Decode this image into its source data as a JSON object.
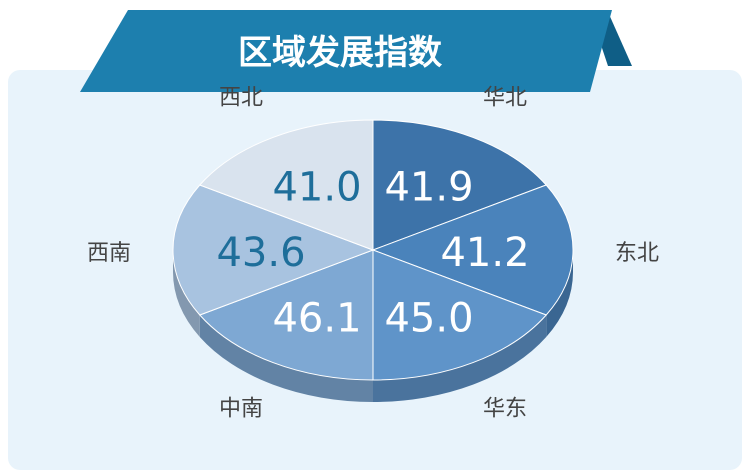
{
  "chart_data": {
    "type": "pie",
    "title": "区域发展指数",
    "categories": [
      "华北",
      "东北",
      "华东",
      "中南",
      "西南",
      "西北"
    ],
    "values": [
      41.9,
      41.2,
      45.0,
      46.1,
      43.6,
      41.0
    ],
    "colors": [
      "#3d73a9",
      "#4a83bb",
      "#5f94c9",
      "#7ea8d3",
      "#a8c3e0",
      "#d9e3ee"
    ],
    "value_text_colors": [
      "#ffffff",
      "#ffffff",
      "#ffffff",
      "#ffffff",
      "#1e6e9a",
      "#1e6e9a"
    ]
  },
  "theme": {
    "banner_color": "#1d7fae",
    "banner_dark": "#0f5e86",
    "panel_bg": "#e8f3fb",
    "label_color": "#444444"
  }
}
